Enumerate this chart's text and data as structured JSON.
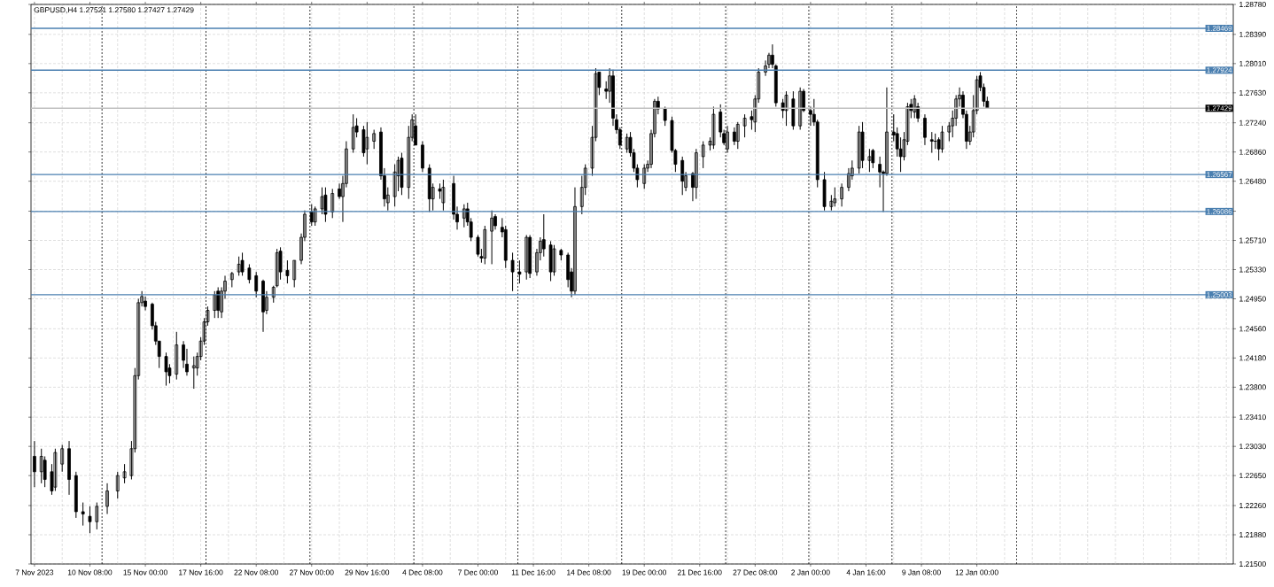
{
  "chart_data": {
    "type": "candlestick",
    "title": "GBPUSD,H4  1.27521 1.27580 1.27427 1.27429",
    "color": "#000000",
    "categories": [
      "7 Nov 2023",
      null,
      null,
      null,
      null,
      null,
      null,
      null,
      null,
      null,
      null,
      null,
      null,
      null,
      null,
      null,
      "10 Nov 08:00",
      null,
      null,
      null,
      null,
      null,
      null,
      null,
      null,
      null,
      null,
      null,
      null,
      null,
      null,
      null,
      "15 Nov 00:00",
      null,
      null,
      null,
      null,
      null,
      null,
      null,
      null,
      null,
      null,
      null,
      null,
      null,
      null,
      null,
      "17 Nov 16:00",
      null,
      null,
      null,
      null,
      null,
      null,
      null,
      null,
      null,
      null,
      null,
      null,
      null,
      null,
      null,
      "22 Nov 08:00",
      null,
      null,
      null,
      null,
      null,
      null,
      null,
      null,
      null,
      null,
      null,
      null,
      null,
      null,
      null,
      "27 Nov 00:00",
      null,
      null,
      null,
      null,
      null,
      null,
      null,
      null,
      null,
      null,
      null,
      null,
      null,
      null,
      null,
      "29 Nov 16:00",
      null,
      null,
      null,
      null,
      null,
      null,
      null,
      null,
      null,
      null,
      null,
      null,
      null,
      null,
      null,
      "4 Dec 08:00",
      null,
      null,
      null,
      null,
      null,
      null,
      null,
      null,
      null,
      null,
      null,
      null,
      null,
      null,
      null,
      "7 Dec 00:00",
      null,
      null,
      null,
      null,
      null,
      null,
      null,
      null,
      null,
      null,
      null,
      null,
      null,
      null,
      null,
      "11 Dec 16:00",
      null,
      null,
      null,
      null,
      null,
      null,
      null,
      null,
      null,
      null,
      null,
      null,
      null,
      null,
      null,
      "14 Dec 08:00",
      null,
      null,
      null,
      null,
      null,
      null,
      null,
      null,
      null,
      null,
      null,
      null,
      null,
      null,
      null,
      "19 Dec 00:00",
      null,
      null,
      null,
      null,
      null,
      null,
      null,
      null,
      null,
      null,
      null,
      null,
      null,
      null,
      null,
      "21 Dec 16:00",
      null,
      null,
      null,
      null,
      null,
      null,
      null,
      null,
      null,
      null,
      null,
      null,
      null,
      null,
      null,
      "27 Dec 08:00",
      null,
      null,
      null,
      null,
      null,
      null,
      null,
      null,
      null,
      null,
      null,
      null,
      null,
      null,
      null,
      "2 Jan 00:00",
      null,
      null,
      null,
      null,
      null,
      null,
      null,
      null,
      null,
      null,
      null,
      null,
      null,
      null,
      null,
      "4 Jan 16:00",
      null,
      null,
      null,
      null,
      null,
      null,
      null,
      null,
      null,
      null,
      null,
      null,
      null,
      null,
      null,
      "9 Jan 08:00",
      null,
      null,
      null,
      null,
      null,
      null,
      null,
      null,
      null,
      null,
      null,
      null,
      null,
      null,
      null,
      "12 Jan 00:00",
      null,
      null,
      null,
      null,
      null,
      null,
      null,
      null,
      null,
      null,
      null,
      null,
      null,
      null,
      null,
      null,
      null,
      null,
      null,
      null,
      null,
      null,
      null,
      null,
      null,
      null,
      null,
      null,
      null,
      null,
      null,
      null,
      null,
      null,
      null,
      null,
      null,
      null,
      null,
      null,
      null,
      null,
      null,
      null,
      null,
      null,
      null,
      null,
      null,
      null,
      null,
      null,
      null,
      null,
      null,
      null,
      null,
      null,
      null,
      null,
      null,
      null,
      null,
      null,
      null,
      null,
      null,
      null,
      null,
      null,
      null,
      null,
      null,
      null
    ],
    "ohlc": [
      [
        1.229,
        1.231,
        1.225,
        1.227
      ],
      null,
      [
        1.227,
        1.23,
        1.2255,
        1.229
      ],
      [
        1.2285,
        1.229,
        1.225,
        1.226
      ],
      null,
      [
        1.227,
        1.228,
        1.224,
        1.2245
      ],
      [
        1.225,
        1.23,
        1.2245,
        1.2295
      ],
      null,
      [
        1.228,
        1.2305,
        1.227,
        1.23
      ],
      null,
      [
        1.23,
        1.231,
        1.224,
        1.226
      ],
      null,
      [
        1.2265,
        1.227,
        1.221,
        1.2218
      ],
      null,
      [
        1.2218,
        1.223,
        1.22,
        1.2215
      ],
      null,
      [
        1.2212,
        1.2225,
        1.219,
        1.2205
      ],
      null,
      [
        1.2205,
        1.223,
        1.2195,
        1.2225
      ],
      null,
      null,
      [
        1.2225,
        1.2255,
        1.2215,
        1.2245
      ],
      null,
      null,
      [
        1.2245,
        1.227,
        1.2235,
        1.2265
      ],
      null,
      [
        1.2262,
        1.228,
        1.2255,
        1.227
      ],
      null,
      [
        1.2265,
        1.231,
        1.226,
        1.23
      ],
      [
        1.23,
        1.2405,
        1.2295,
        1.2395
      ],
      [
        1.2395,
        1.2495,
        1.239,
        1.249
      ],
      [
        1.249,
        1.2505,
        1.2485,
        1.2498
      ],
      [
        1.2492,
        1.2498,
        1.248,
        1.2485
      ],
      null,
      [
        1.2488,
        1.249,
        1.2455,
        1.246
      ],
      [
        1.246,
        1.2465,
        1.2435,
        1.244
      ],
      [
        1.244,
        1.244,
        1.2405,
        1.242
      ],
      null,
      [
        1.242,
        1.2425,
        1.2382,
        1.24
      ],
      [
        1.2405,
        1.241,
        1.2385,
        1.2395
      ],
      null,
      [
        1.2397,
        1.2452,
        1.239,
        1.2435
      ],
      null,
      [
        1.2435,
        1.244,
        1.2405,
        1.2415
      ],
      [
        1.241,
        1.243,
        1.2395,
        1.24
      ],
      null,
      [
        1.2405,
        1.242,
        1.2378,
        1.2408
      ],
      [
        1.2405,
        1.2425,
        1.2395,
        1.242
      ],
      [
        1.242,
        1.2445,
        1.2415,
        1.244
      ],
      [
        1.244,
        1.247,
        1.2435,
        1.2465
      ],
      [
        1.2465,
        1.2485,
        1.246,
        1.248
      ],
      null,
      [
        1.248,
        1.2505,
        1.247,
        1.25
      ],
      [
        1.2505,
        1.251,
        1.247,
        1.248
      ],
      [
        1.2478,
        1.251,
        1.247,
        1.2505
      ],
      [
        1.2505,
        1.2525,
        1.2495,
        1.2518
      ],
      null,
      [
        1.252,
        1.253,
        1.251,
        1.2528
      ],
      null,
      [
        1.253,
        1.255,
        1.2525,
        1.254
      ],
      [
        1.2545,
        1.2555,
        1.2525,
        1.253
      ],
      null,
      [
        1.2535,
        1.254,
        1.2515,
        1.252
      ],
      null,
      [
        1.2525,
        1.253,
        1.2497,
        1.2505
      ],
      null,
      [
        1.2518,
        1.252,
        1.2452,
        1.2478
      ],
      [
        1.248,
        1.2505,
        1.2475,
        1.2497
      ],
      null,
      [
        1.2497,
        1.2512,
        1.249,
        1.251
      ],
      [
        1.2512,
        1.256,
        1.251,
        1.2555
      ],
      [
        1.2557,
        1.2562,
        1.252,
        1.253
      ],
      null,
      [
        1.2532,
        1.2545,
        1.2515,
        1.2525
      ],
      null,
      [
        1.252,
        1.2545,
        1.251,
        1.2545
      ],
      null,
      [
        1.2545,
        1.258,
        1.254,
        1.2575
      ],
      [
        1.2575,
        1.261,
        1.257,
        1.2605
      ],
      null,
      [
        1.2608,
        1.2618,
        1.259,
        1.2595
      ],
      [
        1.2595,
        1.2615,
        1.259,
        1.2612
      ],
      null,
      [
        1.2612,
        1.264,
        1.2605,
        1.2628
      ],
      [
        1.263,
        1.264,
        1.2595,
        1.2605
      ],
      null,
      [
        1.2608,
        1.2638,
        1.26,
        1.2632
      ],
      null,
      [
        1.2638,
        1.2645,
        1.2625,
        1.2628
      ],
      [
        1.2628,
        1.2655,
        1.2595,
        1.2645
      ],
      [
        1.2645,
        1.27,
        1.264,
        1.269
      ],
      null,
      [
        1.269,
        1.2735,
        1.2685,
        1.2718
      ],
      [
        1.272,
        1.273,
        1.2705,
        1.2712
      ],
      null,
      [
        1.2715,
        1.272,
        1.268,
        1.2685
      ],
      [
        1.269,
        1.2725,
        1.267,
        1.2705
      ],
      null,
      [
        1.27,
        1.2715,
        1.269,
        1.271
      ],
      null,
      [
        1.2712,
        1.2718,
        1.265,
        1.2655
      ],
      [
        1.2655,
        1.2665,
        1.2615,
        1.2625
      ],
      [
        1.262,
        1.264,
        1.261,
        1.263
      ],
      null,
      [
        1.2628,
        1.267,
        1.2615,
        1.266
      ],
      [
        1.2655,
        1.268,
        1.2635,
        1.2675
      ],
      [
        1.2678,
        1.2685,
        1.263,
        1.264
      ],
      null,
      [
        1.264,
        1.272,
        1.2625,
        1.2705
      ],
      [
        1.2705,
        1.2735,
        1.27,
        1.2728
      ],
      [
        1.272,
        1.2735,
        1.2695,
        1.2695
      ],
      null,
      [
        1.2695,
        1.27,
        1.266,
        1.2665
      ],
      null,
      [
        1.2665,
        1.267,
        1.2608,
        1.2625
      ],
      [
        1.2625,
        1.2645,
        1.261,
        1.264
      ],
      null,
      [
        1.2638,
        1.2645,
        1.2625,
        1.2635
      ],
      [
        1.262,
        1.265,
        1.261,
        1.264
      ],
      null,
      null,
      [
        1.2645,
        1.2655,
        1.2598,
        1.2605
      ],
      [
        1.2605,
        1.2615,
        1.2585,
        1.2595
      ],
      null,
      [
        1.26,
        1.2618,
        1.2588,
        1.2612
      ],
      [
        1.2612,
        1.262,
        1.259,
        1.2595
      ],
      [
        1.2595,
        1.26,
        1.257,
        1.2575
      ],
      null,
      [
        1.2575,
        1.2578,
        1.255,
        1.2553
      ],
      [
        1.255,
        1.256,
        1.2542,
        1.2548
      ],
      [
        1.2548,
        1.259,
        1.254,
        1.2585
      ],
      null,
      [
        1.2583,
        1.261,
        1.254,
        1.26
      ],
      [
        1.2602,
        1.2605,
        1.2585,
        1.259
      ],
      null,
      [
        1.2588,
        1.26,
        1.2575,
        1.2582
      ],
      [
        1.2585,
        1.259,
        1.2535,
        1.2545
      ],
      null,
      [
        1.2545,
        1.2555,
        1.2505,
        1.253
      ],
      null,
      [
        1.253,
        1.2545,
        1.2515,
        1.2527
      ],
      null,
      [
        1.253,
        1.2578,
        1.252,
        1.2575
      ],
      [
        1.2575,
        1.2578,
        1.2522,
        1.2528
      ],
      null,
      [
        1.253,
        1.256,
        1.2525,
        1.2555
      ],
      [
        1.2555,
        1.2575,
        1.2545,
        1.257
      ],
      [
        1.2572,
        1.2605,
        1.255,
        1.256
      ],
      null,
      [
        1.2565,
        1.257,
        1.2518,
        1.253
      ],
      [
        1.253,
        1.2565,
        1.2525,
        1.256
      ],
      null,
      [
        1.2558,
        1.256,
        1.2545,
        1.2552
      ],
      null,
      [
        1.2552,
        1.2555,
        1.251,
        1.252
      ],
      [
        1.253,
        1.2535,
        1.2497,
        1.2505
      ],
      [
        1.2505,
        1.264,
        1.25,
        1.2615
      ],
      null,
      [
        1.2615,
        1.2655,
        1.2605,
        1.264
      ],
      [
        1.264,
        1.267,
        1.263,
        1.2665
      ],
      null,
      [
        1.2665,
        1.272,
        1.2655,
        1.2705
      ],
      [
        1.2705,
        1.2795,
        1.27,
        1.2788
      ],
      [
        1.279,
        1.279,
        1.276,
        1.277
      ],
      null,
      [
        1.2768,
        1.2778,
        1.2755,
        1.2765
      ],
      [
        1.2765,
        1.2795,
        1.275,
        1.2785
      ],
      [
        1.2785,
        1.2793,
        1.272,
        1.273
      ],
      [
        1.2728,
        1.2735,
        1.271,
        1.2715
      ],
      [
        1.2715,
        1.2718,
        1.269,
        1.2695
      ],
      null,
      [
        1.269,
        1.271,
        1.2685,
        1.2705
      ],
      [
        1.2705,
        1.2712,
        1.268,
        1.2685
      ],
      [
        1.2685,
        1.269,
        1.266,
        1.2665
      ],
      [
        1.2665,
        1.267,
        1.264,
        1.265
      ],
      null,
      [
        1.2645,
        1.267,
        1.2638,
        1.2665
      ],
      [
        1.2665,
        1.2675,
        1.266,
        1.267
      ],
      [
        1.267,
        1.2715,
        1.2665,
        1.271
      ],
      [
        1.271,
        1.2755,
        1.2705,
        1.2752
      ],
      [
        1.2752,
        1.2758,
        1.2735,
        1.2742
      ],
      null,
      [
        1.2742,
        1.2745,
        1.272,
        1.2727
      ],
      null,
      [
        1.2727,
        1.2732,
        1.2685,
        1.2688
      ],
      [
        1.2688,
        1.269,
        1.266,
        1.267
      ],
      null,
      [
        1.2675,
        1.268,
        1.263,
        1.2648
      ],
      [
        1.264,
        1.266,
        1.2635,
        1.2655
      ],
      null,
      [
        1.2658,
        1.266,
        1.2622,
        1.264
      ],
      [
        1.264,
        1.269,
        1.2625,
        1.2685
      ],
      null,
      [
        1.268,
        1.27,
        1.2665,
        1.2695
      ],
      null,
      [
        1.2695,
        1.2705,
        1.2688,
        1.27
      ],
      [
        1.2695,
        1.2745,
        1.269,
        1.2735
      ],
      null,
      [
        1.2738,
        1.2748,
        1.2705,
        1.2712
      ],
      [
        1.271,
        1.2715,
        1.2695,
        1.2698
      ],
      [
        1.269,
        1.272,
        1.2685,
        1.2712
      ],
      null,
      [
        1.2712,
        1.2718,
        1.2695,
        1.27
      ],
      [
        1.27,
        1.2725,
        1.269,
        1.2722
      ],
      null,
      [
        1.272,
        1.2735,
        1.2705,
        1.273
      ],
      null,
      [
        1.2732,
        1.274,
        1.2715,
        1.2728
      ],
      [
        1.2725,
        1.276,
        1.2712,
        1.2755
      ],
      [
        1.2755,
        1.2795,
        1.275,
        1.279
      ],
      null,
      [
        1.279,
        1.2805,
        1.2785,
        1.2798
      ],
      [
        1.28,
        1.2815,
        1.2795,
        1.2812
      ],
      [
        1.2812,
        1.2826,
        1.2795,
        1.28
      ],
      [
        1.2798,
        1.28,
        1.2745,
        1.275
      ],
      null,
      [
        1.275,
        1.2755,
        1.273,
        1.274
      ],
      [
        1.274,
        1.2765,
        1.272,
        1.276
      ],
      null,
      [
        1.2755,
        1.2765,
        1.2715,
        1.272
      ],
      null,
      [
        1.272,
        1.277,
        1.2715,
        1.2765
      ],
      [
        1.2765,
        1.2768,
        1.2738,
        1.274
      ],
      null,
      [
        1.274,
        1.2745,
        1.272,
        1.2735
      ],
      [
        1.2735,
        1.2755,
        1.272,
        1.2725
      ],
      [
        1.2725,
        1.2728,
        1.264,
        1.265
      ],
      null,
      [
        1.265,
        1.266,
        1.261,
        1.2615
      ],
      null,
      [
        1.2615,
        1.263,
        1.261,
        1.2622
      ],
      [
        1.262,
        1.264,
        1.2615,
        1.2625
      ],
      null,
      [
        1.2625,
        1.2645,
        1.2615,
        1.264
      ],
      null,
      [
        1.264,
        1.2665,
        1.2635,
        1.2658
      ],
      [
        1.2655,
        1.2675,
        1.265,
        1.2665
      ],
      null,
      [
        1.2665,
        1.272,
        1.2658,
        1.2712
      ],
      [
        1.2712,
        1.2725,
        1.2665,
        1.2675
      ],
      null,
      [
        1.2675,
        1.269,
        1.266,
        1.268
      ],
      [
        1.2688,
        1.269,
        1.2665,
        1.2672
      ],
      null,
      [
        1.267,
        1.268,
        1.264,
        1.266
      ],
      [
        1.266,
        1.2662,
        1.2608,
        1.2658
      ],
      [
        1.2658,
        1.277,
        1.2655,
        1.2712
      ],
      null,
      [
        1.2712,
        1.2735,
        1.27,
        1.2708
      ],
      [
        1.271,
        1.2718,
        1.268,
        1.269
      ],
      [
        1.269,
        1.2705,
        1.266,
        1.268
      ],
      [
        1.268,
        1.2712,
        1.2675,
        1.2702
      ],
      [
        1.27,
        1.275,
        1.2695,
        1.2745
      ],
      [
        1.2748,
        1.2755,
        1.273,
        1.274
      ],
      [
        1.2738,
        1.276,
        1.273,
        1.2755
      ],
      [
        1.2745,
        1.275,
        1.2725,
        1.273
      ],
      null,
      [
        1.273,
        1.2735,
        1.2695,
        1.2705
      ],
      null,
      [
        1.2702,
        1.2712,
        1.2685,
        1.27
      ],
      [
        1.27,
        1.271,
        1.269,
        1.27
      ],
      [
        1.2702,
        1.2705,
        1.2675,
        1.269
      ],
      [
        1.269,
        1.272,
        1.2685,
        1.2712
      ],
      null,
      [
        1.2712,
        1.2725,
        1.27,
        1.272
      ],
      [
        1.272,
        1.274,
        1.2705,
        1.273
      ],
      [
        1.273,
        1.276,
        1.272,
        1.2755
      ],
      [
        1.2755,
        1.277,
        1.2745,
        1.276
      ],
      [
        1.276,
        1.2765,
        1.273,
        1.2735
      ],
      [
        1.2735,
        1.274,
        1.269,
        1.27
      ],
      [
        1.27,
        1.272,
        1.2695,
        1.2712
      ],
      [
        1.2712,
        1.276,
        1.2705,
        1.274
      ],
      [
        1.274,
        1.2785,
        1.2735,
        1.278
      ],
      [
        1.2785,
        1.279,
        1.2765,
        1.277
      ],
      [
        1.277,
        1.2775,
        1.2745,
        1.2752
      ],
      [
        1.27521,
        1.2758,
        1.27427,
        1.27429
      ],
      null,
      null,
      null,
      null,
      null,
      null,
      null,
      null,
      null,
      null,
      null,
      null,
      null,
      null,
      null,
      null,
      null,
      null,
      null,
      null,
      null,
      null,
      null,
      null,
      null,
      null,
      null,
      null,
      null,
      null,
      null,
      null,
      null,
      null,
      null,
      null,
      null,
      null,
      null,
      null,
      null,
      null,
      null,
      null,
      null,
      null,
      null,
      null,
      null,
      null,
      null,
      null,
      null,
      null,
      null,
      null,
      null,
      null,
      null,
      null,
      null,
      null,
      null,
      null,
      null,
      null,
      null,
      null,
      null,
      null,
      null
    ],
    "ylim": [
      1.215,
      1.2878
    ],
    "yticks": [
      {
        "value": 1.215,
        "label": "1.21500"
      },
      {
        "value": 1.2188,
        "label": "1.21880"
      },
      {
        "value": 1.2226,
        "label": "1.22260"
      },
      {
        "value": 1.2265,
        "label": "1.22650"
      },
      {
        "value": 1.2303,
        "label": "1.23030"
      },
      {
        "value": 1.2341,
        "label": "1.23410"
      },
      {
        "value": 1.238,
        "label": "1.23800"
      },
      {
        "value": 1.2418,
        "label": "1.24180"
      },
      {
        "value": 1.2456,
        "label": "1.24560"
      },
      {
        "value": 1.2495,
        "label": "1.24950"
      },
      {
        "value": 1.2533,
        "label": "1.25330"
      },
      {
        "value": 1.2571,
        "label": "1.25710"
      },
      {
        "value": 1.2609,
        "label": null
      },
      {
        "value": 1.2648,
        "label": "1.26480"
      },
      {
        "value": 1.2686,
        "label": "1.26860"
      },
      {
        "value": 1.2724,
        "label": "1.27240"
      },
      {
        "value": 1.2763,
        "label": "1.27630"
      },
      {
        "value": 1.2801,
        "label": "1.28010"
      },
      {
        "value": 1.2839,
        "label": "1.28390"
      },
      {
        "value": 1.2878,
        "label": "1.28780"
      }
    ],
    "grid": true,
    "ref_lines": [
      {
        "axis": "y",
        "value": 1.28469,
        "label": "1.28469",
        "color": "#4a7fb0"
      },
      {
        "axis": "y",
        "value": 1.27924,
        "label": "1.27924",
        "color": "#4a7fb0"
      },
      {
        "axis": "y",
        "value": 1.26567,
        "label": "1.26567",
        "color": "#4a7fb0"
      },
      {
        "axis": "y",
        "value": 1.26086,
        "label": "1.26086",
        "color": "#4a7fb0"
      },
      {
        "axis": "y",
        "value": 1.25003,
        "label": "1.25003",
        "color": "#4a7fb0"
      },
      {
        "axis": "y",
        "value": 1.27429,
        "label": "1.27429",
        "color": "#c0c0c0"
      }
    ]
  }
}
